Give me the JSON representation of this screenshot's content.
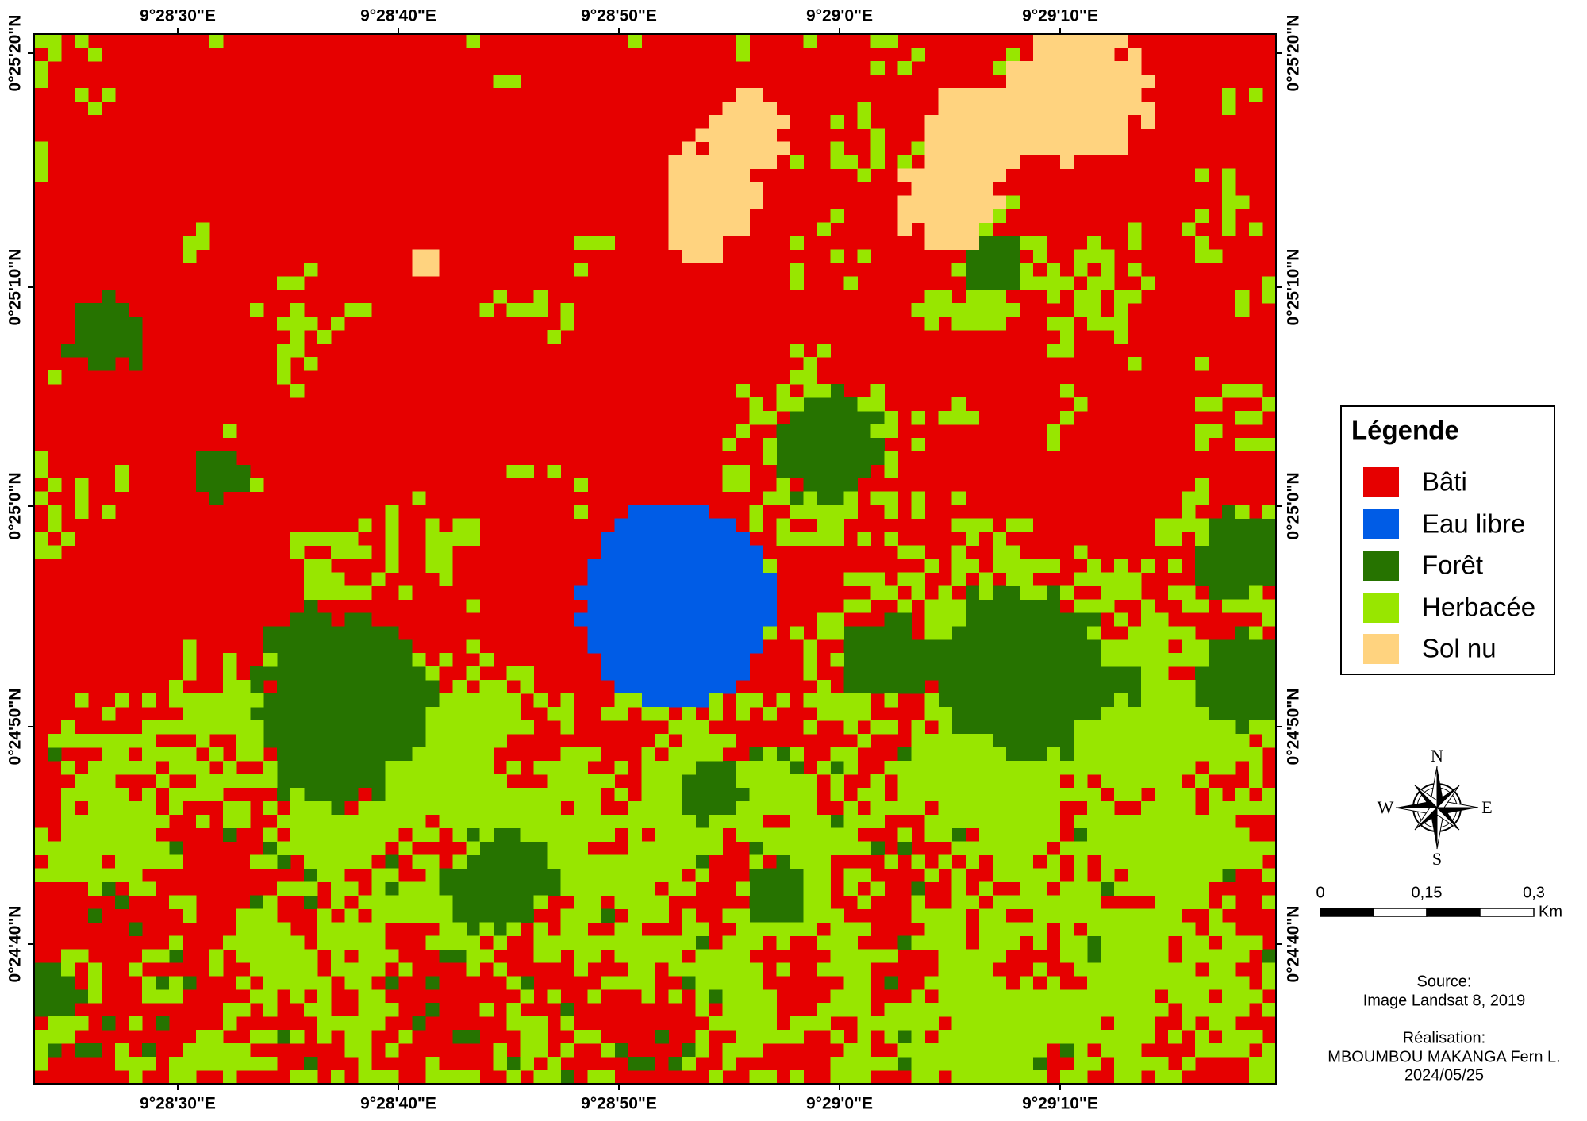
{
  "map": {
    "lon_labels": [
      "9°28'30\"E",
      "9°28'40\"E",
      "9°28'50\"E",
      "9°29'0\"E",
      "9°29'10\"E"
    ],
    "lat_labels": [
      "0°25'20\"N",
      "0°25'10\"N",
      "0°25'0\"N",
      "0°24'50\"N",
      "0°24'40\"N"
    ],
    "legend": {
      "title": "Légende",
      "items": [
        {
          "label": "Bâti",
          "color": "#e60000"
        },
        {
          "label": "Eau libre",
          "color": "#005ce6"
        },
        {
          "label": "Forêt",
          "color": "#267300"
        },
        {
          "label": "Herbacée",
          "color": "#98e600"
        },
        {
          "label": "Sol nu",
          "color": "#ffd37f"
        }
      ]
    },
    "compass": {
      "n": "N",
      "s": "S",
      "e": "E",
      "w": "W"
    },
    "scale_bar": {
      "labels": [
        "0",
        "0,15",
        "0,3"
      ],
      "unit": "Km"
    },
    "source": {
      "heading": "Source:",
      "text": "Image Landsat 8, 2019"
    },
    "credits": {
      "heading": "Réalisation:",
      "author": "MBOUMBOU MAKANGA Fern L.",
      "date": "2024/05/25"
    }
  }
}
